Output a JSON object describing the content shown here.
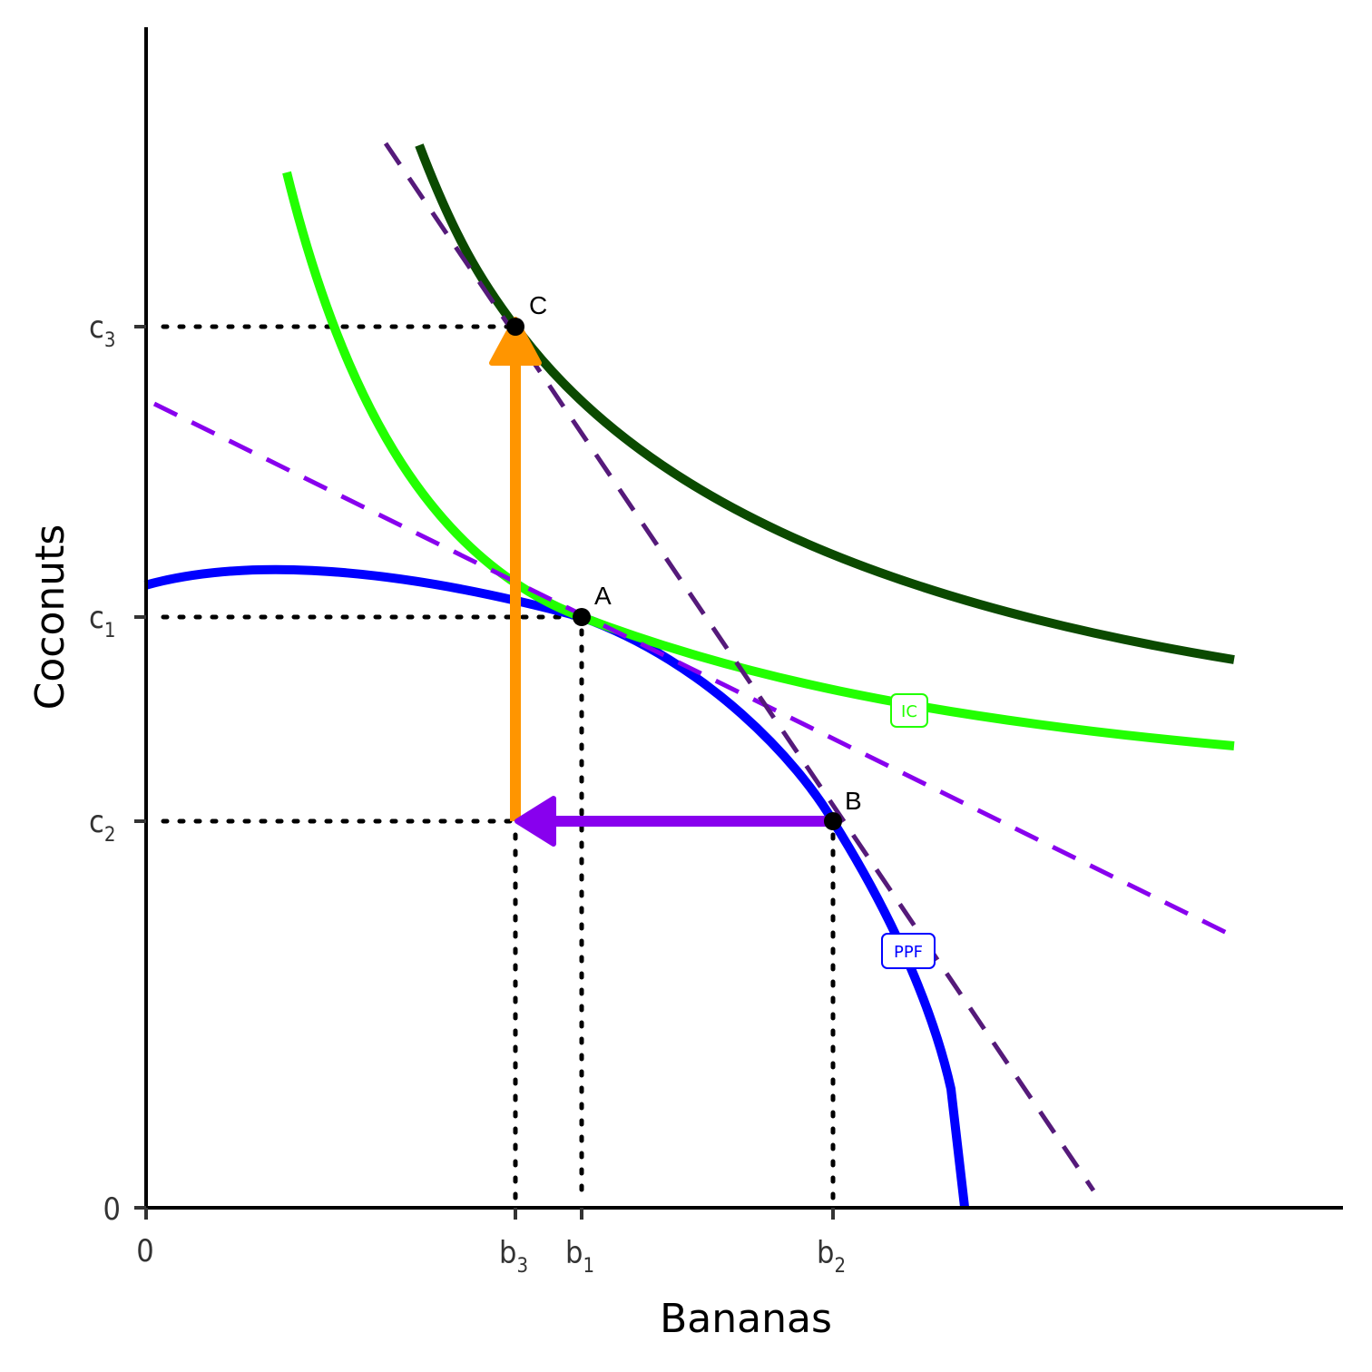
{
  "axes": {
    "xlabel": "Bananas",
    "ylabel": "Coconuts",
    "x_origin_label": "0",
    "y_origin_label": "0"
  },
  "x_ticks": [
    {
      "base": "b",
      "sub": "3"
    },
    {
      "base": "b",
      "sub": "1"
    },
    {
      "base": "b",
      "sub": "2"
    }
  ],
  "y_ticks": [
    {
      "base": "c",
      "sub": "3"
    },
    {
      "base": "c",
      "sub": "1"
    },
    {
      "base": "c",
      "sub": "2"
    }
  ],
  "points": [
    {
      "label": "A"
    },
    {
      "label": "B"
    },
    {
      "label": "C"
    }
  ],
  "curve_labels": {
    "ppf": "PPF",
    "ic": "IC"
  },
  "colors": {
    "ppf": "#0000ff",
    "ic": "#22ff00",
    "ic_high": "#0b4a00",
    "price_line_1": "#8800ee",
    "price_line_2": "#551a7a",
    "arrow_up": "#ff9500",
    "arrow_left": "#8800ee"
  }
}
